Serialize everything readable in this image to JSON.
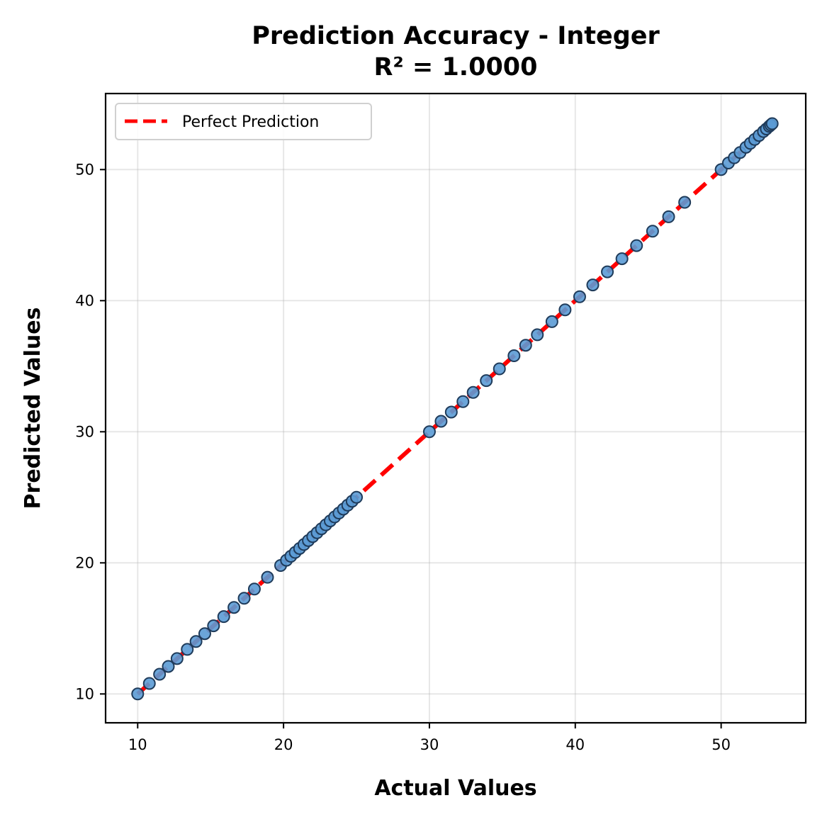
{
  "chart_data": {
    "type": "scatter",
    "title": "Prediction Accuracy - Integer",
    "subtitle": "R² = 1.0000",
    "xlabel": "Actual Values",
    "ylabel": "Predicted Values",
    "xlim": [
      7.8,
      55.8
    ],
    "ylim": [
      7.8,
      55.8
    ],
    "x_ticks": [
      10,
      20,
      30,
      40,
      50
    ],
    "y_ticks": [
      10,
      20,
      30,
      40,
      50
    ],
    "grid": true,
    "legend_position": "top-left",
    "legend": [
      "Perfect Prediction"
    ],
    "reference_line": {
      "name": "Perfect Prediction",
      "x": [
        10,
        53.5
      ],
      "y": [
        10,
        53.5
      ],
      "style": "dashed",
      "color": "#ff0000"
    },
    "points_color": "#5b9bd5",
    "points_edge_color": "#1f3b5a",
    "points": {
      "x": [
        10.0,
        10.8,
        11.5,
        12.1,
        12.7,
        13.4,
        14.0,
        14.6,
        15.2,
        15.9,
        16.6,
        17.3,
        18.0,
        18.9,
        19.8,
        20.2,
        20.5,
        20.8,
        21.1,
        21.4,
        21.7,
        22.0,
        22.3,
        22.6,
        22.9,
        23.2,
        23.5,
        23.8,
        24.1,
        24.4,
        24.7,
        25.0,
        30.0,
        30.8,
        31.5,
        32.3,
        33.0,
        33.9,
        34.8,
        35.8,
        36.6,
        37.4,
        38.4,
        39.3,
        40.3,
        41.2,
        42.2,
        43.2,
        44.2,
        45.3,
        46.4,
        47.5,
        50.0,
        50.5,
        50.9,
        51.3,
        51.7,
        52.0,
        52.3,
        52.6,
        52.9,
        53.1,
        53.3,
        53.4,
        53.5
      ],
      "y": [
        10.0,
        10.8,
        11.5,
        12.1,
        12.7,
        13.4,
        14.0,
        14.6,
        15.2,
        15.9,
        16.6,
        17.3,
        18.0,
        18.9,
        19.8,
        20.2,
        20.5,
        20.8,
        21.1,
        21.4,
        21.7,
        22.0,
        22.3,
        22.6,
        22.9,
        23.2,
        23.5,
        23.8,
        24.1,
        24.4,
        24.7,
        25.0,
        30.0,
        30.8,
        31.5,
        32.3,
        33.0,
        33.9,
        34.8,
        35.8,
        36.6,
        37.4,
        38.4,
        39.3,
        40.3,
        41.2,
        42.2,
        43.2,
        44.2,
        45.3,
        46.4,
        47.5,
        50.0,
        50.5,
        50.9,
        51.3,
        51.7,
        52.0,
        52.3,
        52.6,
        52.9,
        53.1,
        53.3,
        53.4,
        53.5
      ]
    }
  }
}
